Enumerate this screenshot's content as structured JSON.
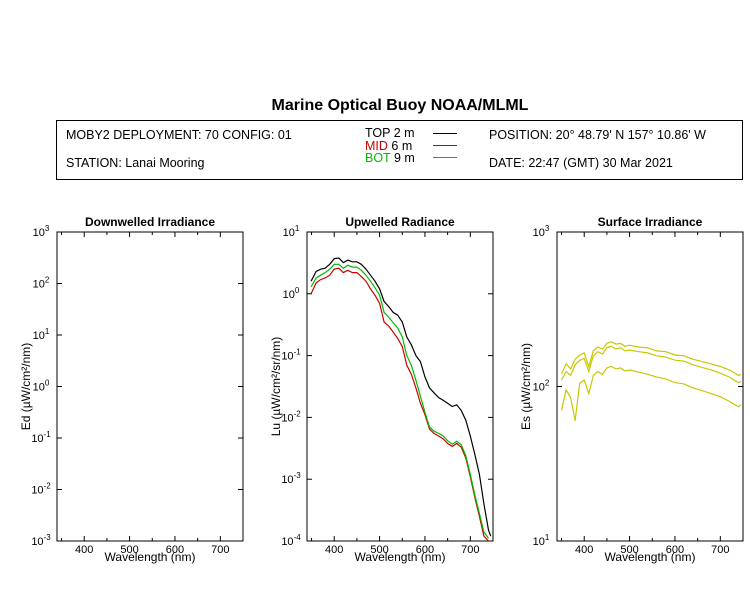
{
  "title": "Marine Optical Buoy NOAA/MLML",
  "header": {
    "deployment": "MOBY2 DEPLOYMENT: 70 CONFIG: 01",
    "station": "STATION: Lanai Mooring",
    "position": "POSITION: 20° 48.79' N   157° 10.86' W",
    "date": "DATE: 22:47 (GMT) 30 Mar 2021",
    "legend": [
      {
        "name": "TOP",
        "depth": "2",
        "unit": "m",
        "color": "#000000"
      },
      {
        "name": "MID",
        "depth": "6",
        "unit": "m",
        "color": "#cc0000"
      },
      {
        "name": "BOT",
        "depth": "9",
        "unit": "m",
        "color": "#00bb00"
      }
    ]
  },
  "chart_data": [
    {
      "type": "line",
      "title": "Downwelled Irradiance",
      "xlabel": "Wavelength (nm)",
      "ylabel": "Ed  (µW/cm²/nm)",
      "xlim": [
        340,
        750
      ],
      "ylim": [
        0.001,
        1000
      ],
      "yscale": "log",
      "xticks": [
        "400",
        "500",
        "600",
        "700"
      ],
      "yticks": [
        "10^-3",
        "10^-2",
        "10^-1",
        "10^0",
        "10^1",
        "10^2",
        "10^3"
      ],
      "series": []
    },
    {
      "type": "line",
      "title": "Upwelled Radiance",
      "xlabel": "Wavelength (nm)",
      "ylabel": "Lu  (µW/cm²/sr/nm)",
      "xlim": [
        340,
        750
      ],
      "ylim": [
        0.0001,
        10
      ],
      "yscale": "log",
      "xticks": [
        "400",
        "500",
        "600",
        "700"
      ],
      "yticks": [
        "10^-4",
        "10^-3",
        "10^-2",
        "10^-1",
        "10^0",
        "10^1"
      ],
      "series": [
        {
          "name": "TOP",
          "color": "#000000",
          "x": [
            349,
            360,
            370,
            380,
            390,
            400,
            410,
            420,
            430,
            440,
            450,
            460,
            470,
            480,
            490,
            500,
            510,
            520,
            530,
            540,
            550,
            560,
            570,
            580,
            590,
            600,
            610,
            620,
            630,
            640,
            650,
            660,
            670,
            680,
            690,
            700,
            710,
            720,
            730,
            740,
            745
          ],
          "y": [
            1.6,
            2.3,
            2.5,
            2.6,
            3.0,
            3.7,
            3.8,
            3.2,
            3.5,
            3.3,
            3.3,
            3.0,
            2.5,
            2.0,
            1.6,
            1.2,
            0.75,
            0.62,
            0.5,
            0.45,
            0.35,
            0.2,
            0.15,
            0.1,
            0.08,
            0.045,
            0.03,
            0.025,
            0.021,
            0.019,
            0.017,
            0.015,
            0.016,
            0.013,
            0.009,
            0.005,
            0.0025,
            0.0012,
            0.0004,
            0.00015,
            0.00012
          ]
        },
        {
          "name": "MID",
          "color": "#cc0000",
          "x": [
            349,
            360,
            370,
            380,
            390,
            400,
            410,
            420,
            430,
            440,
            450,
            460,
            470,
            480,
            490,
            500,
            510,
            520,
            530,
            540,
            550,
            560,
            570,
            580,
            590,
            600,
            610,
            620,
            630,
            640,
            650,
            660,
            670,
            680,
            690,
            700,
            710,
            720,
            730,
            740
          ],
          "y": [
            1.0,
            1.5,
            1.7,
            1.8,
            2.0,
            2.5,
            2.6,
            2.2,
            2.4,
            2.2,
            2.2,
            1.9,
            1.6,
            1.2,
            0.95,
            0.7,
            0.35,
            0.3,
            0.24,
            0.19,
            0.14,
            0.07,
            0.05,
            0.03,
            0.017,
            0.011,
            0.0065,
            0.0055,
            0.005,
            0.0045,
            0.0038,
            0.0034,
            0.0038,
            0.0033,
            0.0022,
            0.0011,
            0.0005,
            0.00025,
            0.00012,
            0.0001
          ]
        },
        {
          "name": "BOT",
          "color": "#00bb00",
          "x": [
            349,
            360,
            370,
            380,
            390,
            400,
            410,
            420,
            430,
            440,
            450,
            460,
            470,
            480,
            490,
            500,
            510,
            520,
            530,
            540,
            550,
            560,
            570,
            580,
            590,
            600,
            610,
            620,
            630,
            640,
            650,
            660,
            670,
            680,
            690,
            700,
            710,
            720,
            730,
            740
          ],
          "y": [
            1.3,
            1.8,
            2.0,
            2.2,
            2.5,
            3.0,
            3.0,
            2.6,
            2.9,
            2.7,
            2.7,
            2.4,
            2.0,
            1.6,
            1.25,
            0.95,
            0.5,
            0.42,
            0.34,
            0.28,
            0.2,
            0.1,
            0.07,
            0.04,
            0.022,
            0.012,
            0.007,
            0.006,
            0.0055,
            0.005,
            0.0042,
            0.0037,
            0.0041,
            0.0036,
            0.0024,
            0.0012,
            0.00055,
            0.00028,
            0.00014,
            0.00011
          ]
        }
      ]
    },
    {
      "type": "line",
      "title": "Surface Irradiance",
      "xlabel": "Wavelength (nm)",
      "ylabel": "Es  (µW/cm²/nm)",
      "xlim": [
        340,
        750
      ],
      "ylim": [
        10,
        1000
      ],
      "yscale": "log",
      "xticks": [
        "400",
        "500",
        "600",
        "700"
      ],
      "yticks": [
        "10^1",
        "10^2",
        "10^3"
      ],
      "series": [
        {
          "color": "#c8c800",
          "x": [
            350,
            360,
            370,
            380,
            390,
            400,
            410,
            420,
            430,
            440,
            450,
            460,
            470,
            480,
            490,
            500,
            520,
            540,
            560,
            580,
            600,
            620,
            640,
            660,
            680,
            700,
            720,
            740,
            745
          ],
          "y": [
            120,
            140,
            130,
            150,
            160,
            165,
            135,
            170,
            180,
            175,
            190,
            195,
            188,
            190,
            182,
            185,
            180,
            178,
            170,
            168,
            160,
            158,
            150,
            145,
            140,
            135,
            128,
            118,
            120
          ]
        },
        {
          "color": "#c8c800",
          "x": [
            350,
            360,
            370,
            380,
            390,
            400,
            410,
            420,
            430,
            440,
            450,
            460,
            470,
            480,
            490,
            500,
            520,
            540,
            560,
            580,
            600,
            620,
            640,
            660,
            680,
            700,
            720,
            740,
            745
          ],
          "y": [
            110,
            125,
            118,
            138,
            148,
            152,
            125,
            158,
            168,
            162,
            178,
            182,
            175,
            178,
            170,
            172,
            168,
            165,
            158,
            155,
            148,
            146,
            138,
            133,
            128,
            122,
            115,
            106,
            108
          ]
        },
        {
          "color": "#c8c800",
          "x": [
            350,
            360,
            370,
            380,
            390,
            400,
            410,
            420,
            430,
            440,
            450,
            460,
            470,
            480,
            490,
            500,
            520,
            540,
            560,
            580,
            600,
            620,
            640,
            660,
            680,
            700,
            720,
            740,
            745
          ],
          "y": [
            70,
            95,
            85,
            60,
            105,
            110,
            90,
            118,
            125,
            120,
            132,
            135,
            130,
            132,
            126,
            128,
            124,
            120,
            115,
            112,
            106,
            104,
            98,
            94,
            90,
            86,
            80,
            74,
            76
          ]
        }
      ]
    }
  ]
}
